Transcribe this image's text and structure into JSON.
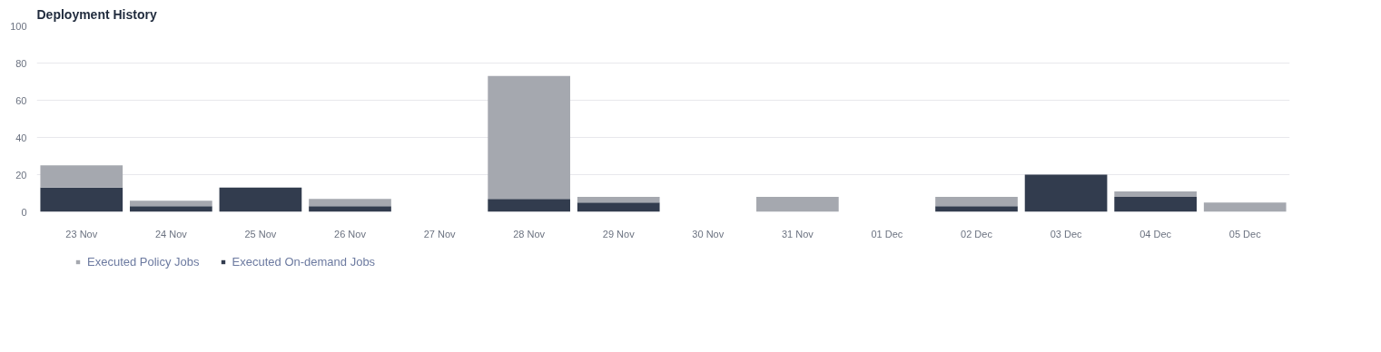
{
  "chart_data": {
    "type": "bar",
    "title": "Deployment History",
    "stacked": true,
    "categories": [
      "23 Nov",
      "24 Nov",
      "25 Nov",
      "26 Nov",
      "27 Nov",
      "28 Nov",
      "29 Nov",
      "30 Nov",
      "31 Nov",
      "01 Dec",
      "02 Dec",
      "03 Dec",
      "04 Dec",
      "05 Dec"
    ],
    "series": [
      {
        "name": "Executed On-demand Jobs",
        "color": "#323c4e",
        "values": [
          13,
          3,
          13,
          3,
          0,
          7,
          5,
          0,
          0,
          0,
          3,
          20,
          8,
          0
        ]
      },
      {
        "name": "Executed Policy Jobs",
        "color": "#a5a8af",
        "values": [
          12,
          3,
          0,
          4,
          0,
          66,
          3,
          0,
          8,
          0,
          5,
          0,
          3,
          5
        ]
      }
    ],
    "ylim": [
      0,
      100
    ],
    "yticks": [
      0,
      20,
      40,
      60,
      80,
      100
    ],
    "grid": "y",
    "legend": "bottom"
  }
}
